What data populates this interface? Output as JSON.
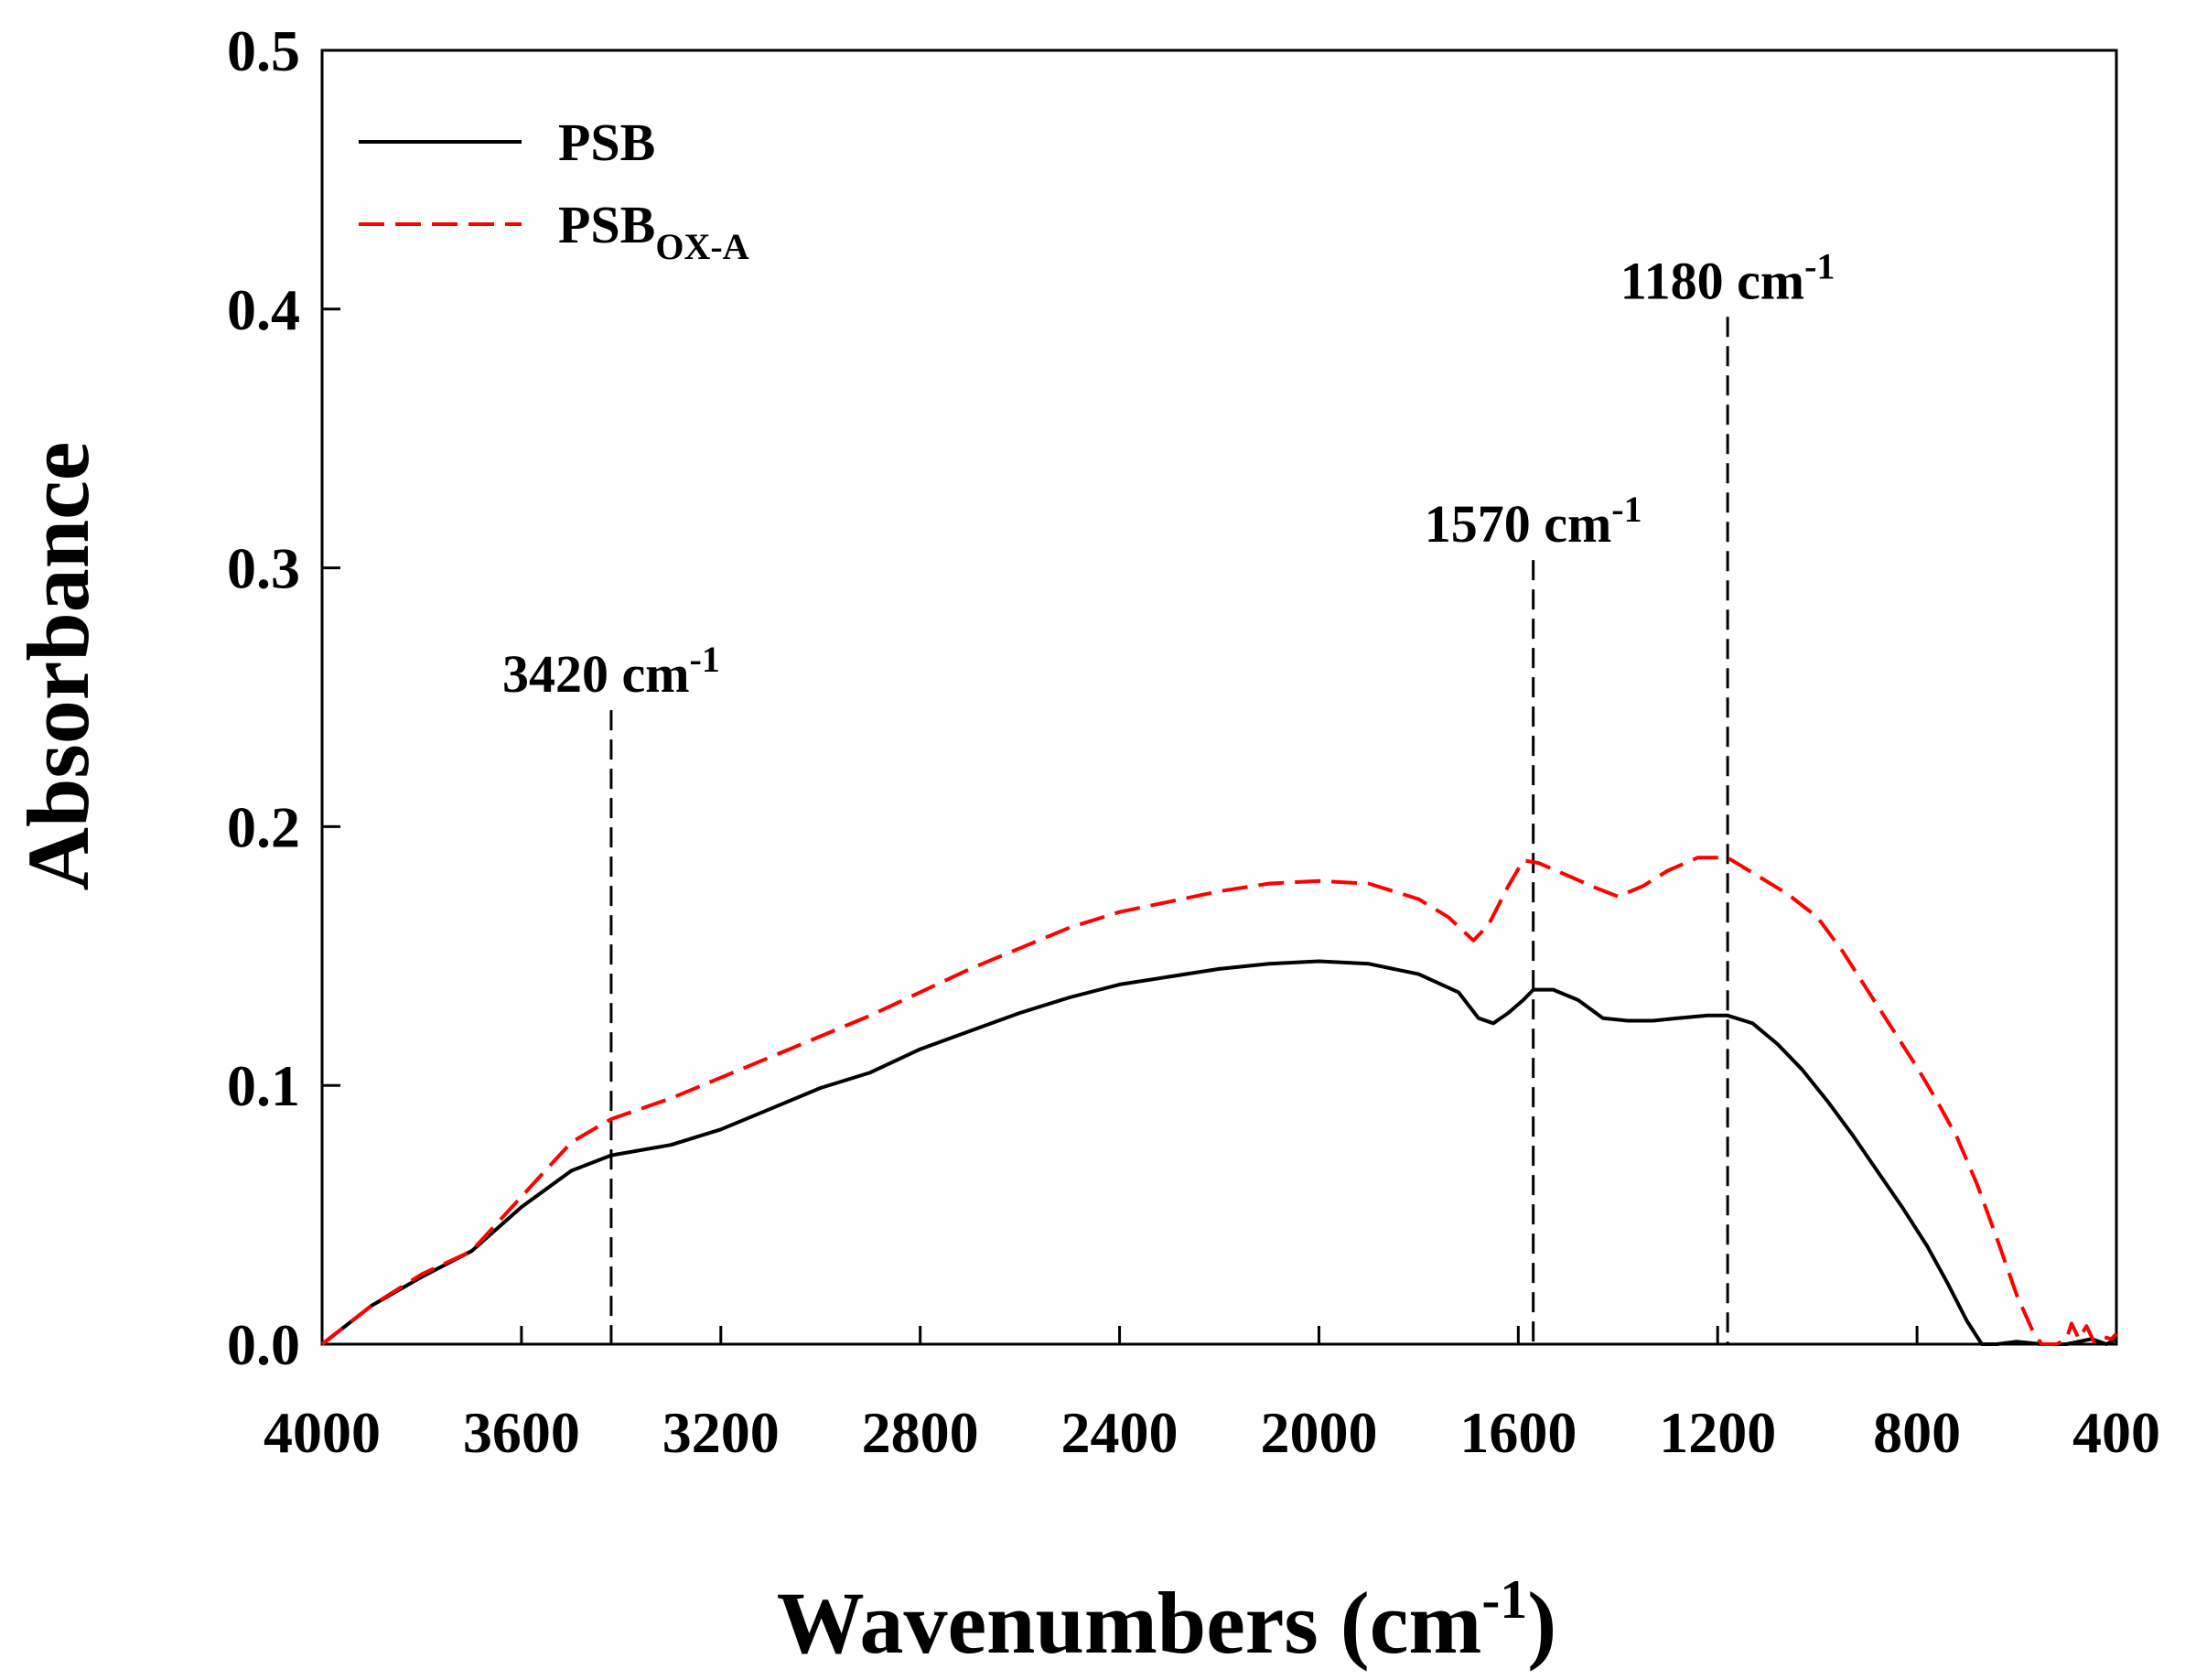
{
  "chart_data": {
    "type": "line",
    "xlabel": "Wavenumbers",
    "xlabel_unit_prefix": "(cm",
    "xlabel_unit_sup": "-1",
    "xlabel_unit_suffix": ")",
    "ylabel": "Absorbance",
    "xlim": [
      4000,
      400
    ],
    "ylim": [
      0.0,
      0.5
    ],
    "x_ticks": [
      4000,
      3600,
      3200,
      2800,
      2400,
      2000,
      1600,
      1200,
      800,
      400
    ],
    "y_ticks": [
      0.0,
      0.1,
      0.2,
      0.3,
      0.4,
      0.5
    ],
    "y_tick_labels": [
      "0.0",
      "0.1",
      "0.2",
      "0.3",
      "0.4",
      "0.5"
    ],
    "legend_position": "top-left",
    "series": [
      {
        "name": "PSB",
        "name_sub": "",
        "color": "#000000",
        "style": "solid",
        "points": [
          [
            4000,
            0.0
          ],
          [
            3900,
            0.015
          ],
          [
            3800,
            0.026
          ],
          [
            3700,
            0.036
          ],
          [
            3600,
            0.053
          ],
          [
            3500,
            0.067
          ],
          [
            3420,
            0.073
          ],
          [
            3300,
            0.077
          ],
          [
            3200,
            0.083
          ],
          [
            3100,
            0.091
          ],
          [
            3000,
            0.099
          ],
          [
            2900,
            0.105
          ],
          [
            2800,
            0.114
          ],
          [
            2700,
            0.121
          ],
          [
            2600,
            0.128
          ],
          [
            2500,
            0.134
          ],
          [
            2400,
            0.139
          ],
          [
            2300,
            0.142
          ],
          [
            2200,
            0.145
          ],
          [
            2100,
            0.147
          ],
          [
            2000,
            0.148
          ],
          [
            1900,
            0.147
          ],
          [
            1800,
            0.143
          ],
          [
            1720,
            0.136
          ],
          [
            1680,
            0.126
          ],
          [
            1650,
            0.124
          ],
          [
            1620,
            0.128
          ],
          [
            1590,
            0.133
          ],
          [
            1570,
            0.137
          ],
          [
            1530,
            0.137
          ],
          [
            1480,
            0.133
          ],
          [
            1430,
            0.126
          ],
          [
            1380,
            0.125
          ],
          [
            1330,
            0.125
          ],
          [
            1280,
            0.126
          ],
          [
            1220,
            0.127
          ],
          [
            1180,
            0.127
          ],
          [
            1130,
            0.124
          ],
          [
            1080,
            0.116
          ],
          [
            1030,
            0.106
          ],
          [
            980,
            0.094
          ],
          [
            930,
            0.081
          ],
          [
            880,
            0.067
          ],
          [
            830,
            0.053
          ],
          [
            780,
            0.038
          ],
          [
            740,
            0.024
          ],
          [
            700,
            0.009
          ],
          [
            670,
            0.0
          ],
          [
            640,
            0.0
          ],
          [
            600,
            0.001
          ],
          [
            550,
            0.0
          ],
          [
            500,
            0.0
          ],
          [
            450,
            0.002
          ],
          [
            420,
            0.0
          ],
          [
            400,
            0.002
          ]
        ]
      },
      {
        "name": "PSB",
        "name_sub": "OX-A",
        "color": "#ff0000",
        "style": "dashed",
        "points": [
          [
            4000,
            0.0
          ],
          [
            3900,
            0.015
          ],
          [
            3800,
            0.027
          ],
          [
            3700,
            0.036
          ],
          [
            3600,
            0.057
          ],
          [
            3500,
            0.078
          ],
          [
            3420,
            0.087
          ],
          [
            3300,
            0.095
          ],
          [
            3200,
            0.103
          ],
          [
            3100,
            0.111
          ],
          [
            3000,
            0.119
          ],
          [
            2900,
            0.127
          ],
          [
            2800,
            0.136
          ],
          [
            2700,
            0.145
          ],
          [
            2600,
            0.153
          ],
          [
            2500,
            0.161
          ],
          [
            2400,
            0.167
          ],
          [
            2300,
            0.171
          ],
          [
            2200,
            0.175
          ],
          [
            2100,
            0.178
          ],
          [
            2000,
            0.179
          ],
          [
            1900,
            0.178
          ],
          [
            1800,
            0.172
          ],
          [
            1740,
            0.165
          ],
          [
            1690,
            0.156
          ],
          [
            1660,
            0.162
          ],
          [
            1620,
            0.177
          ],
          [
            1590,
            0.187
          ],
          [
            1560,
            0.186
          ],
          [
            1500,
            0.181
          ],
          [
            1440,
            0.176
          ],
          [
            1400,
            0.173
          ],
          [
            1350,
            0.177
          ],
          [
            1300,
            0.183
          ],
          [
            1240,
            0.188
          ],
          [
            1180,
            0.188
          ],
          [
            1120,
            0.181
          ],
          [
            1060,
            0.174
          ],
          [
            1000,
            0.165
          ],
          [
            950,
            0.152
          ],
          [
            900,
            0.137
          ],
          [
            850,
            0.122
          ],
          [
            800,
            0.107
          ],
          [
            760,
            0.094
          ],
          [
            720,
            0.08
          ],
          [
            680,
            0.062
          ],
          [
            640,
            0.041
          ],
          [
            600,
            0.019
          ],
          [
            570,
            0.006
          ],
          [
            550,
            0.0
          ],
          [
            520,
            0.0
          ],
          [
            500,
            0.002
          ],
          [
            490,
            0.008
          ],
          [
            475,
            0.002
          ],
          [
            460,
            0.007
          ],
          [
            445,
            0.001
          ],
          [
            430,
            0.003
          ],
          [
            410,
            0.002
          ],
          [
            400,
            0.004
          ]
        ]
      }
    ],
    "annotations": [
      {
        "x": 3420,
        "y_top": 0.245,
        "label": "3420 cm",
        "sup": "-1"
      },
      {
        "x": 1570,
        "y_top": 0.303,
        "label": "1570 cm",
        "sup": "-1"
      },
      {
        "x": 1180,
        "y_top": 0.397,
        "label": "1180 cm",
        "sup": "-1"
      }
    ]
  }
}
